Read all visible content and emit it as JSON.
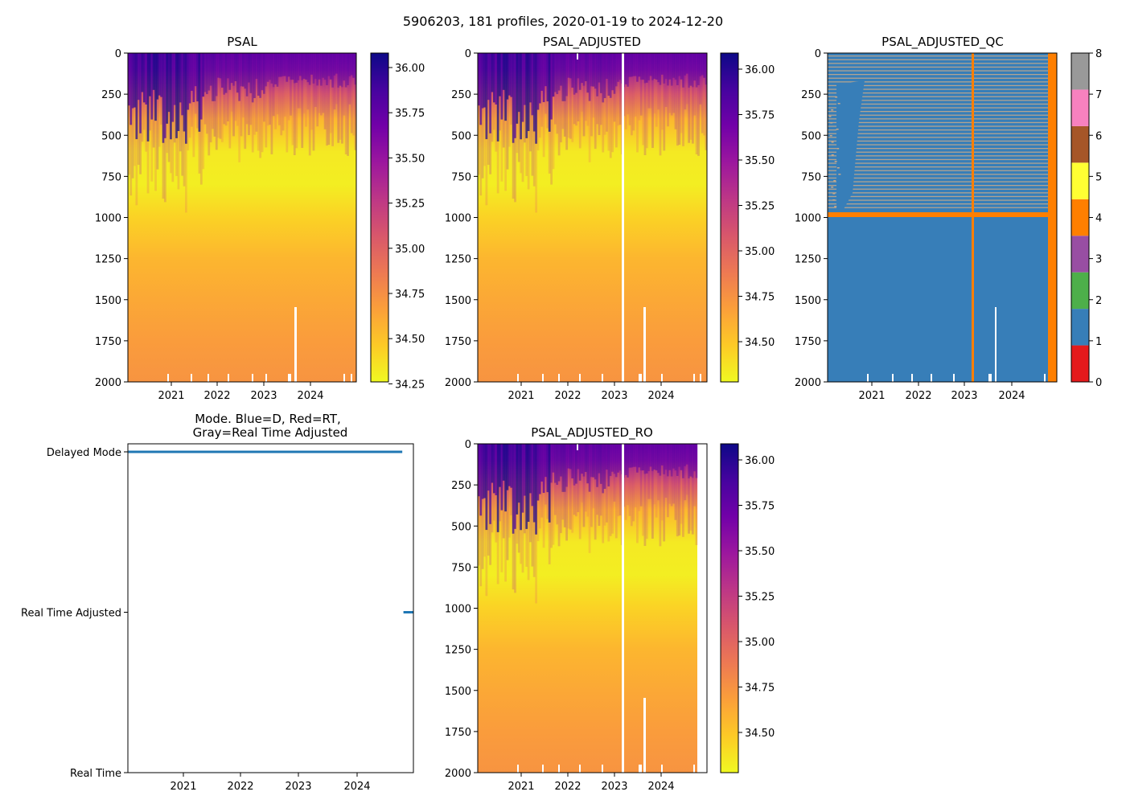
{
  "figure_title": "5906203, 181 profiles, 2020-01-19 to 2024-12-20",
  "colors": {
    "plasma_r": [
      "#f0f921",
      "#fdca26",
      "#fb9f3a",
      "#ed7953",
      "#d8576b",
      "#bd3786",
      "#9c179e",
      "#7201a8",
      "#46039f",
      "#0d0887"
    ],
    "qc": [
      "#e41a1c",
      "#377eb8",
      "#4daf4a",
      "#984ea3",
      "#ff7f00",
      "#ffff33",
      "#a65628",
      "#f781bf",
      "#999999"
    ],
    "qc_grid_line": "#c8a98a",
    "mode_line": "#1f77b4"
  },
  "chart_data": [
    {
      "id": "psal",
      "type": "heatmap",
      "title": "PSAL",
      "xlabel": "",
      "ylabel": "",
      "x_ticks": [
        "2021",
        "2022",
        "2023",
        "2024"
      ],
      "y_ticks": [
        0,
        250,
        500,
        750,
        1000,
        1250,
        1500,
        1750,
        2000
      ],
      "ylim": [
        2000,
        0
      ],
      "colorbar": {
        "range": [
          34.25,
          36.1
        ],
        "ticks": [
          "34.25",
          "34.50",
          "34.75",
          "35.00",
          "35.25",
          "35.50",
          "35.75",
          "36.00"
        ]
      },
      "profile_values": [
        {
          "depth": 0,
          "value": 35.7
        },
        {
          "depth": 100,
          "value": 35.55
        },
        {
          "depth": 250,
          "value": 35.0
        },
        {
          "depth": 400,
          "value": 34.55
        },
        {
          "depth": 600,
          "value": 34.32
        },
        {
          "depth": 800,
          "value": 34.3
        },
        {
          "depth": 1000,
          "value": 34.42
        },
        {
          "depth": 1250,
          "value": 34.55
        },
        {
          "depth": 1500,
          "value": 34.62
        },
        {
          "depth": 1750,
          "value": 34.68
        },
        {
          "depth": 2000,
          "value": 34.72
        }
      ]
    },
    {
      "id": "psal_adjusted",
      "type": "heatmap",
      "title": "PSAL_ADJUSTED",
      "xlabel": "",
      "ylabel": "",
      "x_ticks": [
        "2021",
        "2022",
        "2023",
        "2024"
      ],
      "y_ticks": [
        0,
        250,
        500,
        750,
        1000,
        1250,
        1500,
        1750,
        2000
      ],
      "ylim": [
        2000,
        0
      ],
      "colorbar": {
        "range": [
          34.3,
          36.1
        ],
        "ticks": [
          "34.50",
          "34.75",
          "35.00",
          "35.25",
          "35.50",
          "35.75",
          "36.00"
        ]
      },
      "profile_values": [
        {
          "depth": 0,
          "value": 35.7
        },
        {
          "depth": 100,
          "value": 35.55
        },
        {
          "depth": 250,
          "value": 35.0
        },
        {
          "depth": 400,
          "value": 34.55
        },
        {
          "depth": 600,
          "value": 34.32
        },
        {
          "depth": 800,
          "value": 34.3
        },
        {
          "depth": 1000,
          "value": 34.42
        },
        {
          "depth": 1250,
          "value": 34.55
        },
        {
          "depth": 1500,
          "value": 34.62
        },
        {
          "depth": 1750,
          "value": 34.68
        },
        {
          "depth": 2000,
          "value": 34.72
        }
      ]
    },
    {
      "id": "psal_adjusted_qc",
      "type": "heatmap",
      "title": "PSAL_ADJUSTED_QC",
      "xlabel": "",
      "ylabel": "",
      "x_ticks": [
        "2021",
        "2022",
        "2023",
        "2024"
      ],
      "y_ticks": [
        0,
        250,
        500,
        750,
        1000,
        1250,
        1500,
        1750,
        2000
      ],
      "ylim": [
        2000,
        0
      ],
      "colorbar": {
        "range": [
          0,
          8
        ],
        "ticks": [
          "0",
          "1",
          "2",
          "3",
          "4",
          "5",
          "6",
          "7",
          "8"
        ]
      },
      "dominant_flag": 1,
      "flag_4_depth": 1000
    },
    {
      "id": "mode",
      "type": "line",
      "title_lines": [
        "Mode. Blue=D, Red=RT,",
        "Gray=Real Time Adjusted"
      ],
      "xlabel": "",
      "ylabel": "",
      "x_ticks": [
        "2021",
        "2022",
        "2023",
        "2024"
      ],
      "y_categories": [
        "Real Time",
        "Real Time Adjusted",
        "Delayed Mode"
      ],
      "series": [
        {
          "name": "Delayed Mode",
          "x": [
            2020.05,
            2024.78
          ],
          "y": 2
        },
        {
          "name": "Real Time Adjusted",
          "x": [
            2024.8,
            2024.97
          ],
          "y": 1
        }
      ]
    },
    {
      "id": "psal_adjusted_ro",
      "type": "heatmap",
      "title": "PSAL_ADJUSTED_RO",
      "xlabel": "",
      "ylabel": "",
      "x_ticks": [
        "2021",
        "2022",
        "2023",
        "2024"
      ],
      "y_ticks": [
        0,
        250,
        500,
        750,
        1000,
        1250,
        1500,
        1750,
        2000
      ],
      "ylim": [
        2000,
        0
      ],
      "colorbar": {
        "range": [
          34.3,
          36.1
        ],
        "ticks": [
          "34.50",
          "34.75",
          "35.00",
          "35.25",
          "35.50",
          "35.75",
          "36.00"
        ]
      },
      "profile_values": [
        {
          "depth": 0,
          "value": 35.7
        },
        {
          "depth": 100,
          "value": 35.55
        },
        {
          "depth": 250,
          "value": 35.0
        },
        {
          "depth": 400,
          "value": 34.55
        },
        {
          "depth": 600,
          "value": 34.32
        },
        {
          "depth": 800,
          "value": 34.3
        },
        {
          "depth": 1000,
          "value": 34.42
        },
        {
          "depth": 1250,
          "value": 34.55
        },
        {
          "depth": 1500,
          "value": 34.62
        },
        {
          "depth": 1750,
          "value": 34.68
        },
        {
          "depth": 2000,
          "value": 34.72
        }
      ]
    }
  ]
}
